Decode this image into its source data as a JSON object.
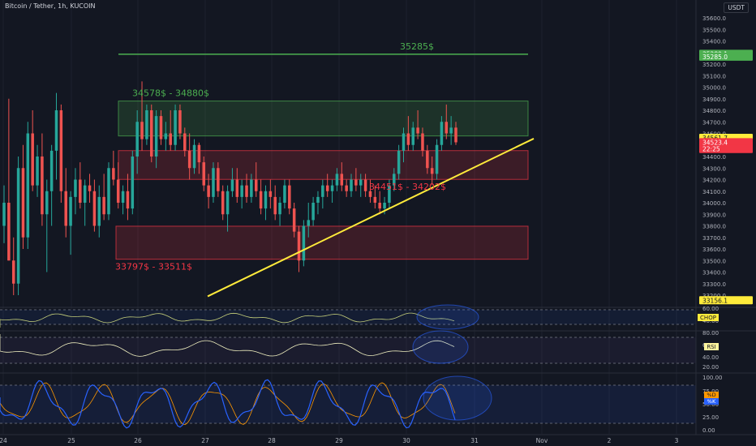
{
  "header": {
    "title": "Bitcoin / Tether, 1h, KUCOIN",
    "currency": "USDT"
  },
  "chart_data": {
    "type": "candlestick",
    "price_axis": {
      "ticks": [
        "35600.0",
        "35500.0",
        "35400.0",
        "35300.0",
        "35200.0",
        "35100.0",
        "35000.0",
        "34900.0",
        "34800.0",
        "34700.0",
        "34600.0",
        "34500.0",
        "34400.0",
        "34300.0",
        "34200.0",
        "34100.0",
        "34000.0",
        "33900.0",
        "33800.0",
        "33700.0",
        "33600.0",
        "33500.0",
        "33400.0",
        "33300.0",
        "33200.0"
      ],
      "range": [
        33150,
        35650
      ]
    },
    "time_axis": {
      "labels": [
        "24",
        "25",
        "26",
        "27",
        "28",
        "29",
        "30",
        "31",
        "Nov",
        "2",
        "3"
      ]
    },
    "price_tags": [
      {
        "text": "35289.1",
        "price": 35289,
        "color": "#4caf50",
        "fg": "#ffffff"
      },
      {
        "text": "35285.0",
        "price": 35264,
        "color": "#4caf50",
        "fg": "#ffffff"
      },
      {
        "text": "34561.7",
        "price": 34561.7,
        "color": "#ffeb3b",
        "fg": "#131722"
      },
      {
        "text": "34523.4",
        "price": 34523.4,
        "color": "#f23645",
        "fg": "#ffffff"
      },
      {
        "text": "22:25",
        "price": 34465,
        "color": "#f23645",
        "fg": "#ffffff"
      },
      {
        "text": "33156.1",
        "price": 33156.1,
        "color": "#ffeb3b",
        "fg": "#131722"
      }
    ],
    "zones": [
      {
        "label": "34578$ - 34880$",
        "top": 34880,
        "bottom": 34578,
        "color": "#4caf50"
      },
      {
        "label": "34451$ - 34202$",
        "top": 34451,
        "bottom": 34202,
        "color": "#f23645"
      },
      {
        "label": "33797$ - 33511$",
        "top": 33797,
        "bottom": 33511,
        "color": "#f23645"
      }
    ],
    "resistance": {
      "label": "35285$",
      "price": 35285,
      "color": "#4caf50"
    },
    "trendline": {
      "from_price": 33190,
      "to_price": 34555,
      "color": "#ffeb3b"
    },
    "candles": [
      [
        33800,
        34150,
        33650,
        34000
      ],
      [
        34000,
        34900,
        33500,
        33500
      ],
      [
        33500,
        33700,
        33200,
        33300
      ],
      [
        33300,
        34400,
        33200,
        34300
      ],
      [
        34300,
        34500,
        33600,
        33700
      ],
      [
        33700,
        34700,
        33600,
        34600
      ],
      [
        34600,
        34800,
        34100,
        34150
      ],
      [
        34150,
        34500,
        34050,
        34400
      ],
      [
        34400,
        34600,
        33800,
        33900
      ],
      [
        33900,
        34200,
        33400,
        34100
      ],
      [
        34100,
        34500,
        33800,
        34450
      ],
      [
        34450,
        34950,
        34200,
        34800
      ],
      [
        34800,
        34850,
        34000,
        34100
      ],
      [
        34100,
        34300,
        33700,
        33800
      ],
      [
        33800,
        34100,
        33550,
        34050
      ],
      [
        34050,
        34300,
        33900,
        34200
      ],
      [
        34200,
        34350,
        33950,
        34000
      ],
      [
        34000,
        34200,
        33800,
        34150
      ],
      [
        34150,
        34250,
        34000,
        34100
      ],
      [
        34100,
        34200,
        33750,
        33800
      ],
      [
        33800,
        34150,
        33700,
        34050
      ],
      [
        34050,
        34250,
        33850,
        33900
      ],
      [
        33900,
        34350,
        33850,
        34300
      ],
      [
        34300,
        34450,
        34150,
        34200
      ],
      [
        34200,
        34350,
        33950,
        34000
      ],
      [
        34000,
        34150,
        33900,
        34100
      ],
      [
        34100,
        34250,
        33850,
        33950
      ],
      [
        33950,
        34450,
        33900,
        34400
      ],
      [
        34400,
        34800,
        34250,
        34700
      ],
      [
        34700,
        35050,
        34450,
        34550
      ],
      [
        34550,
        34850,
        34500,
        34800
      ],
      [
        34800,
        34850,
        34350,
        34400
      ],
      [
        34400,
        34800,
        34300,
        34750
      ],
      [
        34750,
        34800,
        34500,
        34550
      ],
      [
        34550,
        34700,
        34450,
        34600
      ],
      [
        34600,
        34800,
        34450,
        34500
      ],
      [
        34500,
        34850,
        34450,
        34800
      ],
      [
        34800,
        34850,
        34550,
        34600
      ],
      [
        34600,
        34650,
        34400,
        34450
      ],
      [
        34450,
        34600,
        34200,
        34300
      ],
      [
        34300,
        34550,
        34250,
        34500
      ],
      [
        34500,
        34520,
        34250,
        34350
      ],
      [
        34350,
        34400,
        34100,
        34150
      ],
      [
        34150,
        34250,
        33950,
        34050
      ],
      [
        34050,
        34350,
        34000,
        34300
      ],
      [
        34300,
        34350,
        34050,
        34100
      ],
      [
        34100,
        34150,
        33850,
        33900
      ],
      [
        33900,
        34150,
        33750,
        34100
      ],
      [
        34100,
        34300,
        34050,
        34200
      ],
      [
        34200,
        34300,
        34000,
        34050
      ],
      [
        34050,
        34200,
        33950,
        34150
      ],
      [
        34150,
        34250,
        34000,
        34050
      ],
      [
        34050,
        34250,
        34000,
        34200
      ],
      [
        34200,
        34350,
        34050,
        34100
      ],
      [
        34100,
        34200,
        33900,
        33950
      ],
      [
        33950,
        34150,
        33850,
        34100
      ],
      [
        34100,
        34200,
        33950,
        34050
      ],
      [
        34050,
        34150,
        33850,
        33900
      ],
      [
        33900,
        34050,
        33800,
        34000
      ],
      [
        34000,
        34200,
        33950,
        34150
      ],
      [
        34150,
        34200,
        33900,
        33950
      ],
      [
        33950,
        34000,
        33700,
        33750
      ],
      [
        33750,
        33800,
        33400,
        33500
      ],
      [
        33500,
        33850,
        33450,
        33800
      ],
      [
        33800,
        34000,
        33700,
        33850
      ],
      [
        33850,
        34050,
        33800,
        34000
      ],
      [
        34000,
        34100,
        33900,
        34050
      ],
      [
        34050,
        34200,
        33950,
        34150
      ],
      [
        34150,
        34250,
        34050,
        34100
      ],
      [
        34100,
        34200,
        34000,
        34150
      ],
      [
        34150,
        34300,
        34100,
        34250
      ],
      [
        34250,
        34350,
        34100,
        34150
      ],
      [
        34150,
        34200,
        34050,
        34100
      ],
      [
        34100,
        34250,
        34050,
        34200
      ],
      [
        34200,
        34300,
        34100,
        34150
      ],
      [
        34150,
        34250,
        34050,
        34200
      ],
      [
        34200,
        34250,
        34050,
        34100
      ],
      [
        34100,
        34200,
        34000,
        34050
      ],
      [
        34050,
        34150,
        33950,
        34000
      ],
      [
        34000,
        34100,
        33900,
        33950
      ],
      [
        33950,
        34050,
        33900,
        34000
      ],
      [
        34000,
        34200,
        33950,
        34150
      ],
      [
        34150,
        34300,
        34100,
        34250
      ],
      [
        34250,
        34500,
        34200,
        34450
      ],
      [
        34450,
        34650,
        34350,
        34600
      ],
      [
        34600,
        34750,
        34450,
        34500
      ],
      [
        34500,
        34700,
        34450,
        34650
      ],
      [
        34650,
        34800,
        34550,
        34600
      ],
      [
        34600,
        34650,
        34400,
        34450
      ],
      [
        34450,
        34500,
        34250,
        34300
      ],
      [
        34300,
        34400,
        34150,
        34250
      ],
      [
        34250,
        34550,
        34200,
        34500
      ],
      [
        34500,
        34750,
        34450,
        34700
      ],
      [
        34700,
        34850,
        34550,
        34600
      ],
      [
        34600,
        34750,
        34500,
        34650
      ],
      [
        34650,
        34700,
        34500,
        34523
      ]
    ]
  },
  "indicators": [
    {
      "label": "CHOP",
      "label_bg": "#ffeb3b",
      "label_fg": "#131722",
      "ticks": [
        "60.00",
        "40.00"
      ]
    },
    {
      "label": "RSI",
      "label_bg": "#fff59d",
      "label_fg": "#131722",
      "ticks": [
        "80.00",
        "60.00",
        "40.00",
        "20.00"
      ]
    },
    {
      "label_d": "%D",
      "label_k": "%K",
      "d_bg": "#ff9800",
      "k_bg": "#2962ff",
      "ticks": [
        "100.00",
        "75.00",
        "50.00",
        "25.00",
        "0.00"
      ]
    }
  ]
}
